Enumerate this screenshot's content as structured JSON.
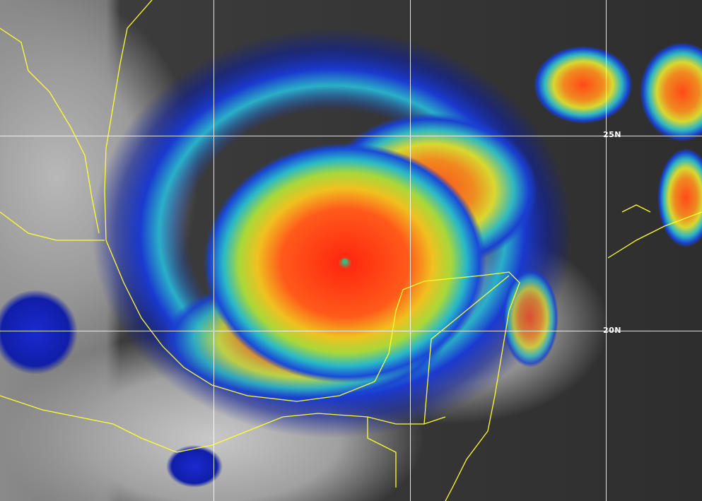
{
  "image": {
    "type": "satellite infrared enhanced imagery",
    "colors": {
      "coastline": "#ffff33",
      "grid": "#ffffff",
      "eye": "#3cb878",
      "core": "#ff3a1a",
      "outer_band": "#1a3fd0"
    },
    "latitude_labels": [
      "25N",
      "20N"
    ]
  }
}
